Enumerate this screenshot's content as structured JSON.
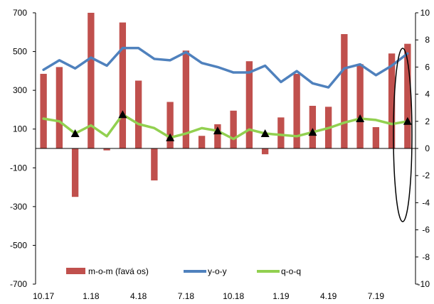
{
  "chart_data": {
    "type": "bar",
    "title": "",
    "x_labels": [
      "10.17",
      "1.18",
      "4.18",
      "7.18",
      "10.18",
      "1.19",
      "4.19",
      "7.19"
    ],
    "left_axis": {
      "min": -700,
      "max": 700,
      "ticks": [
        700,
        500,
        300,
        100,
        -100,
        -300,
        -500,
        -700
      ]
    },
    "right_axis": {
      "min": -10,
      "max": 10,
      "ticks": [
        10,
        8,
        6,
        4,
        2,
        0,
        -2,
        -4,
        -6,
        -8,
        -10
      ]
    },
    "series": [
      {
        "name": "m-o-m  (ľavá os)",
        "axis": "left",
        "kind": "bar",
        "color": "#c0504d",
        "values": [
          385,
          420,
          -250,
          700,
          -10,
          650,
          350,
          -165,
          240,
          505,
          65,
          125,
          195,
          450,
          -30,
          160,
          385,
          220,
          215,
          590,
          435,
          110,
          490,
          540
        ]
      },
      {
        "name": "y-o-y",
        "axis": "right",
        "kind": "line",
        "color": "#4f81bd",
        "values": [
          5.8,
          6.5,
          5.9,
          6.7,
          6.1,
          7.4,
          7.4,
          6.6,
          6.5,
          7.1,
          6.3,
          6.0,
          5.6,
          5.6,
          6.1,
          4.9,
          5.7,
          4.8,
          4.5,
          5.9,
          6.2,
          5.4,
          6.1,
          7.0
        ]
      },
      {
        "name": "q-o-q",
        "axis": "right",
        "kind": "line",
        "color": "#92d050",
        "values": [
          2.2,
          2.0,
          1.1,
          1.7,
          0.9,
          2.5,
          1.8,
          1.5,
          0.8,
          1.1,
          1.5,
          1.3,
          0.7,
          1.4,
          1.1,
          1.0,
          0.9,
          1.2,
          1.5,
          1.9,
          2.2,
          2.1,
          1.8,
          2.0
        ],
        "markers_at": [
          2,
          5,
          8,
          11,
          14,
          17,
          20,
          23
        ]
      }
    ],
    "legend_position": "bottom",
    "grid": false,
    "annotation": "ellipse highlighting the latest data point"
  }
}
